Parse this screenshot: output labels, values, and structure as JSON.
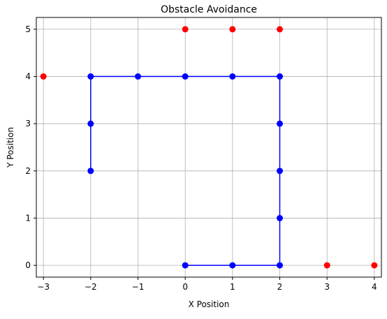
{
  "chart_data": {
    "type": "scatter",
    "title": "Obstacle Avoidance",
    "xlabel": "X Position",
    "ylabel": "Y Position",
    "xlim": [
      -3.15,
      4.15
    ],
    "ylim": [
      -0.25,
      5.25
    ],
    "xticks": [
      -3,
      -2,
      -1,
      0,
      1,
      2,
      3,
      4
    ],
    "yticks": [
      0,
      1,
      2,
      3,
      4,
      5
    ],
    "grid": true,
    "legend": "none",
    "series": [
      {
        "kind": "line+markers",
        "color": "#0000ff",
        "points": [
          [
            0,
            0
          ],
          [
            1,
            0
          ],
          [
            2,
            0
          ],
          [
            2,
            1
          ],
          [
            2,
            2
          ],
          [
            2,
            3
          ],
          [
            2,
            4
          ],
          [
            1,
            4
          ],
          [
            0,
            4
          ],
          [
            -1,
            4
          ],
          [
            -2,
            4
          ],
          [
            -2,
            3
          ],
          [
            -2,
            2
          ]
        ]
      },
      {
        "kind": "markers",
        "color": "#ff0000",
        "points": [
          [
            0,
            5
          ],
          [
            1,
            5
          ],
          [
            2,
            5
          ],
          [
            -3,
            4
          ],
          [
            3,
            0
          ],
          [
            4,
            0
          ]
        ]
      }
    ]
  }
}
